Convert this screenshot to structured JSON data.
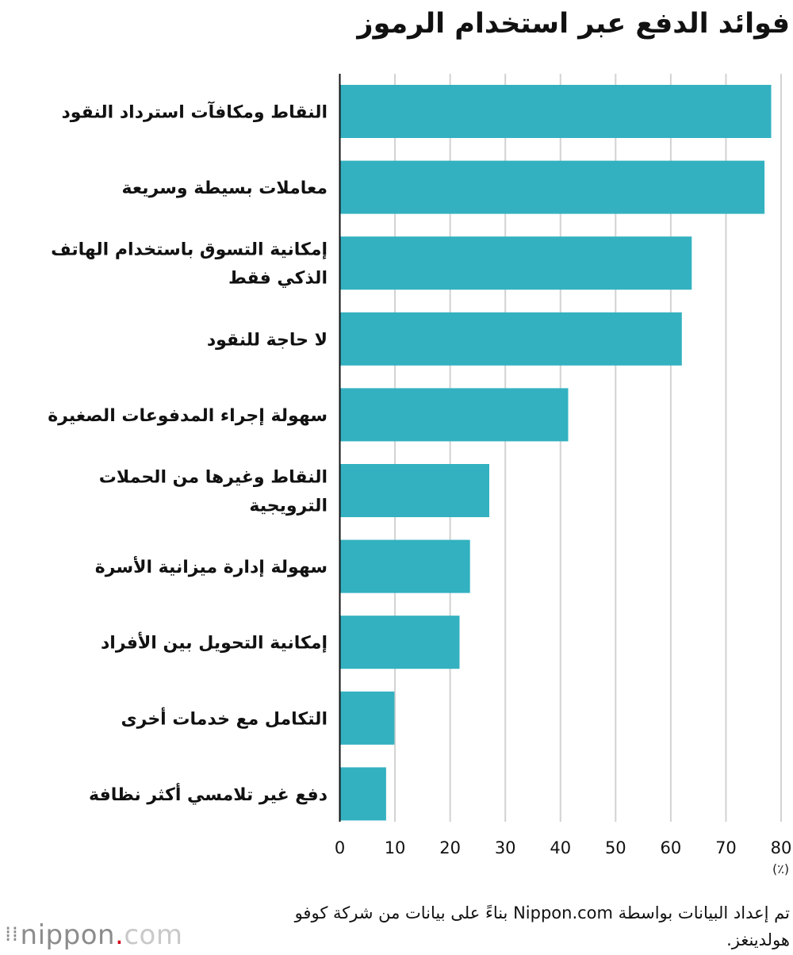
{
  "chart_data": {
    "type": "bar",
    "orientation": "horizontal",
    "title": "فوائد الدفع عبر استخدام الرموز",
    "categories": [
      "النقاط ومكافآت استرداد النقود",
      "معاملات بسيطة وسريعة",
      "إمكانية التسوق باستخدام الهاتف الذكي فقط",
      "لا حاجة للنقود",
      "سهولة إجراء المدفوعات الصغيرة",
      "النقاط وغيرها من الحملات الترويجية",
      "سهولة إدارة ميزانية الأسرة",
      "إمكانية التحويل بين الأفراد",
      "التكامل مع خدمات أخرى",
      "دفع غير تلامسي أكثر نظافة"
    ],
    "values": [
      78.2,
      77.0,
      63.8,
      62.0,
      41.4,
      27.1,
      23.6,
      21.7,
      9.9,
      8.4
    ],
    "xlim": [
      0,
      80
    ],
    "xticks": [
      "0",
      "10",
      "20",
      "30",
      "40",
      "50",
      "60",
      "70",
      "80"
    ],
    "xlabel": "(٪)",
    "grid": true,
    "bar_color": "#33b1c0",
    "grid_color": "#d2d2d2"
  },
  "source_note": "تم إعداد البيانات بواسطة Nippon.com بناءً على بيانات من شركة كوفو هولدينغز.",
  "logo": {
    "part1": "nippon",
    "dot": ".",
    "part2": "com"
  }
}
